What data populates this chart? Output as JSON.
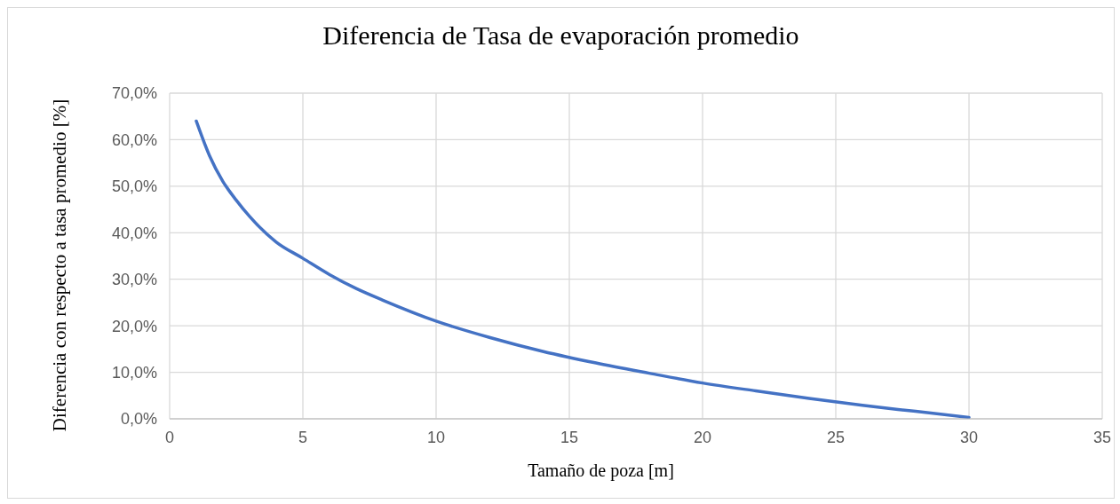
{
  "chart_data": {
    "type": "line",
    "title": "Diferencia de Tasa de evaporación promedio",
    "xlabel": "Tamaño de poza [m]",
    "ylabel": "Diferencia con respecto a tasa promedio [%]",
    "x": [
      1,
      1.5,
      2,
      2.5,
      3,
      4,
      5,
      6,
      7,
      8,
      10,
      12,
      14,
      16,
      18,
      20,
      22,
      24,
      26,
      28,
      30
    ],
    "series": [
      {
        "color": "#4472c4",
        "values": [
          64,
          56.5,
          51,
          47,
          43.5,
          38,
          34.5,
          31,
          28,
          25.5,
          21,
          17.5,
          14.5,
          12,
          9.8,
          7.7,
          6,
          4.4,
          2.9,
          1.6,
          0.3
        ]
      }
    ],
    "xlim": [
      0,
      35
    ],
    "xticks": [
      0,
      5,
      10,
      15,
      20,
      25,
      30,
      35
    ],
    "ylim": [
      0,
      70
    ],
    "yticks": [
      {
        "value": 0,
        "label": "0,0%"
      },
      {
        "value": 10,
        "label": "10,0%"
      },
      {
        "value": 20,
        "label": "20,0%"
      },
      {
        "value": 30,
        "label": "30,0%"
      },
      {
        "value": 40,
        "label": "40,0%"
      },
      {
        "value": 50,
        "label": "50,0%"
      },
      {
        "value": 60,
        "label": "60,0%"
      },
      {
        "value": 70,
        "label": "70,0%"
      }
    ],
    "grid": true,
    "marker": "none",
    "line_style": "solid"
  }
}
